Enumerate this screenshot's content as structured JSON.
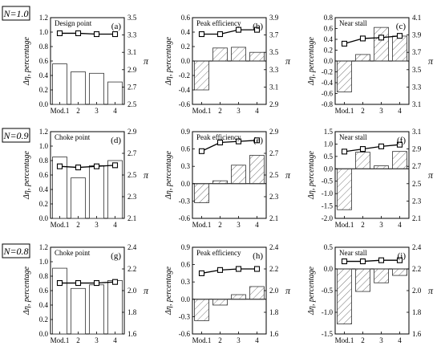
{
  "figure": {
    "row_labels": [
      "N=1.0",
      "N=0.9",
      "N=0.8"
    ],
    "left_axis_label": "Δη, percentage",
    "right_axis_label": "π"
  },
  "chart_data": [
    {
      "type": "bar",
      "panel": "(a)",
      "row": 0,
      "col": 0,
      "title": "Design point",
      "categories": [
        "Mod.1",
        "2",
        "3",
        "4"
      ],
      "values": [
        0.56,
        0.45,
        0.43,
        0.31
      ],
      "ylim": [
        0.0,
        1.2
      ],
      "yticks": [
        "0.0",
        "0.2",
        "0.4",
        "0.6",
        "0.8",
        "1.0",
        "1.2"
      ],
      "pi_values": [
        3.32,
        3.32,
        3.31,
        3.31
      ],
      "pi_ylim": [
        2.5,
        3.5
      ],
      "pi_ticks": [
        "2.5",
        "2.7",
        "2.9",
        "3.1",
        "3.3",
        "3.5"
      ],
      "grid": false
    },
    {
      "type": "bar",
      "panel": "(b)",
      "row": 0,
      "col": 1,
      "title": "Peak efficiency",
      "categories": [
        "Mod.1",
        "2",
        "3",
        "4"
      ],
      "values": [
        -0.4,
        0.18,
        0.19,
        0.12
      ],
      "ylim": [
        -0.6,
        0.6
      ],
      "yticks": [
        "-0.6",
        "-0.4",
        "-0.2",
        "0.0",
        "0.2",
        "0.4",
        "0.6"
      ],
      "pi_values": [
        3.71,
        3.71,
        3.76,
        3.76
      ],
      "pi_ylim": [
        2.9,
        3.9
      ],
      "pi_ticks": [
        "2.9",
        "3.1",
        "3.3",
        "3.5",
        "3.7",
        "3.9"
      ],
      "grid": false
    },
    {
      "type": "bar",
      "panel": "(c)",
      "row": 0,
      "col": 2,
      "title": "Near stall",
      "categories": [
        "Mod.1",
        "2",
        "3",
        "4"
      ],
      "values": [
        -0.57,
        0.12,
        0.62,
        0.46
      ],
      "ylim": [
        -0.8,
        0.8
      ],
      "yticks": [
        "-0.8",
        "-0.6",
        "-0.4",
        "-0.2",
        "0.0",
        "0.2",
        "0.4",
        "0.6",
        "0.8"
      ],
      "pi_values": [
        3.8,
        3.86,
        3.87,
        3.89
      ],
      "pi_ylim": [
        3.1,
        4.1
      ],
      "pi_ticks": [
        "3.1",
        "3.3",
        "3.5",
        "3.7",
        "3.9",
        "4.1"
      ],
      "grid": false
    },
    {
      "type": "bar",
      "panel": "(d)",
      "row": 1,
      "col": 0,
      "title": "Choke point",
      "categories": [
        "Mod.1",
        "2",
        "3",
        "4"
      ],
      "values": [
        0.85,
        0.56,
        0.73,
        0.8
      ],
      "ylim": [
        0.0,
        1.2
      ],
      "yticks": [
        "0.0",
        "0.2",
        "0.4",
        "0.6",
        "0.8",
        "1.0",
        "1.2"
      ],
      "pi_values": [
        2.58,
        2.57,
        2.58,
        2.59
      ],
      "pi_ylim": [
        2.1,
        2.9
      ],
      "pi_ticks": [
        "2.1",
        "2.3",
        "2.5",
        "2.7",
        "2.9"
      ],
      "grid": false
    },
    {
      "type": "bar",
      "panel": "(e)",
      "row": 1,
      "col": 1,
      "title": "Peak efficiency",
      "categories": [
        "Mod.1",
        "2",
        "3",
        "4"
      ],
      "values": [
        -0.33,
        0.05,
        0.32,
        0.49
      ],
      "ylim": [
        -0.6,
        0.9
      ],
      "yticks": [
        "-0.6",
        "-0.3",
        "0.0",
        "0.3",
        "0.6",
        "0.9"
      ],
      "pi_values": [
        2.72,
        2.8,
        2.81,
        2.82
      ],
      "pi_ylim": [
        2.1,
        2.9
      ],
      "pi_ticks": [
        "2.1",
        "2.3",
        "2.5",
        "2.7",
        "2.9"
      ],
      "grid": false
    },
    {
      "type": "bar",
      "panel": "(f)",
      "row": 1,
      "col": 2,
      "title": "Near stall",
      "categories": [
        "Mod.1",
        "2",
        "3",
        "4"
      ],
      "values": [
        -1.65,
        0.67,
        0.12,
        0.7
      ],
      "ylim": [
        -2.0,
        1.5
      ],
      "yticks": [
        "-2.0",
        "-1.5",
        "-1.0",
        "-0.5",
        "0.0",
        "0.5",
        "1.0",
        "1.5"
      ],
      "pi_values": [
        2.87,
        2.9,
        2.93,
        2.95
      ],
      "pi_ylim": [
        2.1,
        3.1
      ],
      "pi_ticks": [
        "2.1",
        "2.3",
        "2.5",
        "2.7",
        "2.9",
        "3.1"
      ],
      "grid": false
    },
    {
      "type": "bar",
      "panel": "(g)",
      "row": 2,
      "col": 0,
      "title": "Choke point",
      "categories": [
        "Mod.1",
        "2",
        "3",
        "4"
      ],
      "values": [
        0.91,
        0.63,
        0.68,
        0.74
      ],
      "ylim": [
        0.0,
        1.2
      ],
      "yticks": [
        "0.0",
        "0.2",
        "0.4",
        "0.6",
        "0.8",
        "1.0",
        "1.2"
      ],
      "pi_values": [
        2.07,
        2.07,
        2.07,
        2.08
      ],
      "pi_ylim": [
        1.6,
        2.4
      ],
      "pi_ticks": [
        "1.6",
        "1.8",
        "2.0",
        "2.2",
        "2.4"
      ],
      "grid": false
    },
    {
      "type": "bar",
      "panel": "(h)",
      "row": 2,
      "col": 1,
      "title": "Peak efficiency",
      "categories": [
        "Mod.1",
        "2",
        "3",
        "4"
      ],
      "values": [
        -0.37,
        -0.1,
        0.08,
        0.22
      ],
      "ylim": [
        -0.6,
        0.9
      ],
      "yticks": [
        "-0.6",
        "-0.3",
        "0.0",
        "0.3",
        "0.6",
        "0.9"
      ],
      "pi_values": [
        2.16,
        2.19,
        2.2,
        2.2
      ],
      "pi_ylim": [
        1.6,
        2.4
      ],
      "pi_ticks": [
        "1.6",
        "1.8",
        "2.0",
        "2.2",
        "2.4"
      ],
      "grid": false
    },
    {
      "type": "bar",
      "panel": "(i)",
      "row": 2,
      "col": 2,
      "title": "Near stall",
      "categories": [
        "Mod.1",
        "2",
        "3",
        "4"
      ],
      "values": [
        -1.27,
        -0.52,
        -0.32,
        -0.15
      ],
      "ylim": [
        -1.5,
        0.5
      ],
      "yticks": [
        "-1.5",
        "-1.0",
        "-0.5",
        "0.0",
        "0.5"
      ],
      "pi_values": [
        2.27,
        2.27,
        2.28,
        2.28
      ],
      "pi_ylim": [
        1.6,
        2.4
      ],
      "pi_ticks": [
        "1.6",
        "1.8",
        "2.0",
        "2.2",
        "2.4"
      ],
      "grid": false
    }
  ]
}
